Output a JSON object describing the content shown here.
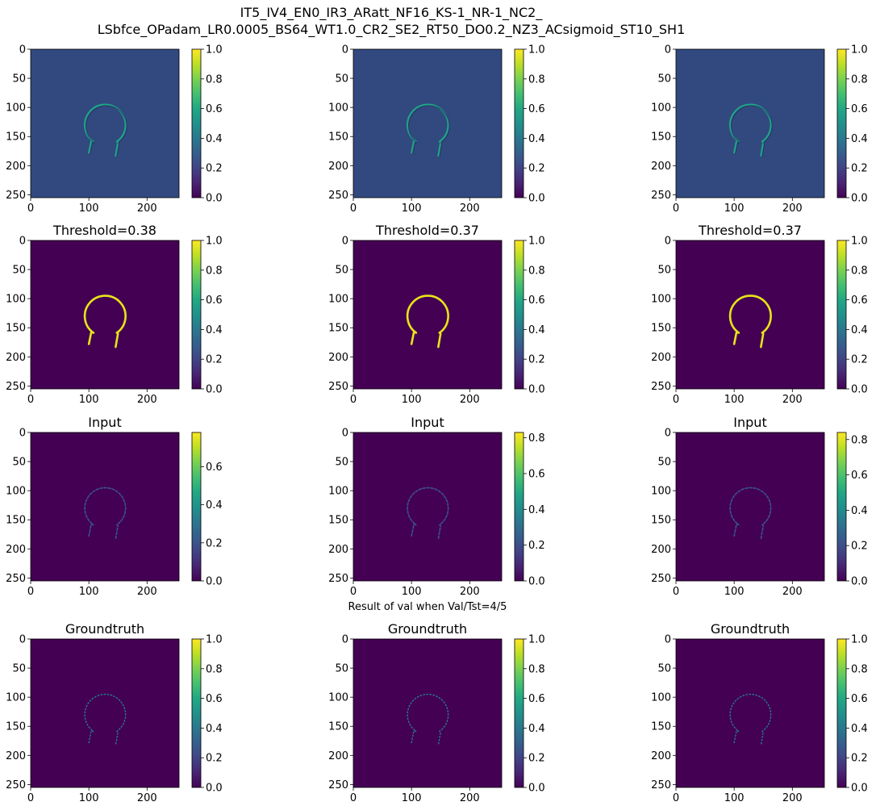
{
  "suptitle_line1": "IT5_IV4_EN0_IR3_ARatt_NF16_KS-1_NR-1_NC2_",
  "suptitle_line2": "LSbfce_OPadam_LR0.0005_BS64_WT1.0_CR2_SE2_RT50_DO0.2_NZ3_ACsigmoid_ST10_SH1",
  "mid_caption": "Result of val when Val/Tst=4/5",
  "colormap": "viridis",
  "colors": {
    "viridis_low": "#440154",
    "viridis_mid": "#21918c",
    "viridis_high": "#fde725"
  },
  "chart_data": [
    {
      "type": "heatmap",
      "row": 0,
      "col": 0,
      "title": "",
      "variant": "prob",
      "xticks": [
        0,
        100,
        200
      ],
      "yticks": [
        0,
        50,
        100,
        150,
        200,
        250
      ],
      "xlim": [
        0,
        255
      ],
      "ylim": [
        255,
        0
      ],
      "colorbar": {
        "min": 0,
        "max": 1.0,
        "ticks": [
          "0.0",
          "0.2",
          "0.4",
          "0.6",
          "0.8",
          "1.0"
        ]
      }
    },
    {
      "type": "heatmap",
      "row": 0,
      "col": 1,
      "title": "",
      "variant": "prob",
      "xticks": [
        0,
        100,
        200
      ],
      "yticks": [
        0,
        50,
        100,
        150,
        200,
        250
      ],
      "xlim": [
        0,
        255
      ],
      "ylim": [
        255,
        0
      ],
      "colorbar": {
        "min": 0,
        "max": 1.0,
        "ticks": [
          "0.0",
          "0.2",
          "0.4",
          "0.6",
          "0.8",
          "1.0"
        ]
      }
    },
    {
      "type": "heatmap",
      "row": 0,
      "col": 2,
      "title": "",
      "variant": "prob",
      "xticks": [
        0,
        100,
        200
      ],
      "yticks": [
        0,
        50,
        100,
        150,
        200,
        250
      ],
      "xlim": [
        0,
        255
      ],
      "ylim": [
        255,
        0
      ],
      "colorbar": {
        "min": 0,
        "max": 1.0,
        "ticks": [
          "0.0",
          "0.2",
          "0.4",
          "0.6",
          "0.8",
          "1.0"
        ]
      }
    },
    {
      "type": "heatmap",
      "row": 1,
      "col": 0,
      "title": "Threshold=0.38",
      "variant": "thresh",
      "xticks": [
        0,
        100,
        200
      ],
      "yticks": [
        0,
        50,
        100,
        150,
        200,
        250
      ],
      "xlim": [
        0,
        255
      ],
      "ylim": [
        255,
        0
      ],
      "colorbar": {
        "min": 0,
        "max": 1.0,
        "ticks": [
          "0.0",
          "0.2",
          "0.4",
          "0.6",
          "0.8",
          "1.0"
        ]
      }
    },
    {
      "type": "heatmap",
      "row": 1,
      "col": 1,
      "title": "Threshold=0.37",
      "variant": "thresh",
      "xticks": [
        0,
        100,
        200
      ],
      "yticks": [
        0,
        50,
        100,
        150,
        200,
        250
      ],
      "xlim": [
        0,
        255
      ],
      "ylim": [
        255,
        0
      ],
      "colorbar": {
        "min": 0,
        "max": 1.0,
        "ticks": [
          "0.0",
          "0.2",
          "0.4",
          "0.6",
          "0.8",
          "1.0"
        ]
      }
    },
    {
      "type": "heatmap",
      "row": 1,
      "col": 2,
      "title": "Threshold=0.37",
      "variant": "thresh",
      "xticks": [
        0,
        100,
        200
      ],
      "yticks": [
        0,
        50,
        100,
        150,
        200,
        250
      ],
      "xlim": [
        0,
        255
      ],
      "ylim": [
        255,
        0
      ],
      "colorbar": {
        "min": 0,
        "max": 1.0,
        "ticks": [
          "0.0",
          "0.2",
          "0.4",
          "0.6",
          "0.8",
          "1.0"
        ]
      }
    },
    {
      "type": "heatmap",
      "row": 2,
      "col": 0,
      "title": "Input",
      "variant": "input",
      "xticks": [
        0,
        100,
        200
      ],
      "yticks": [
        0,
        50,
        100,
        150,
        200,
        250
      ],
      "xlim": [
        0,
        255
      ],
      "ylim": [
        255,
        0
      ],
      "colorbar": {
        "min": 0,
        "max": 0.78,
        "ticks": [
          "0.0",
          "0.2",
          "0.4",
          "0.6"
        ]
      }
    },
    {
      "type": "heatmap",
      "row": 2,
      "col": 1,
      "title": "Input",
      "variant": "input",
      "xticks": [
        0,
        100,
        200
      ],
      "yticks": [
        0,
        50,
        100,
        150,
        200,
        250
      ],
      "xlim": [
        0,
        255
      ],
      "ylim": [
        255,
        0
      ],
      "colorbar": {
        "min": 0,
        "max": 0.83,
        "ticks": [
          "0.0",
          "0.2",
          "0.4",
          "0.6",
          "0.8"
        ]
      }
    },
    {
      "type": "heatmap",
      "row": 2,
      "col": 2,
      "title": "Input",
      "variant": "input",
      "xticks": [
        0,
        100,
        200
      ],
      "yticks": [
        0,
        50,
        100,
        150,
        200,
        250
      ],
      "xlim": [
        0,
        255
      ],
      "ylim": [
        255,
        0
      ],
      "colorbar": {
        "min": 0,
        "max": 0.84,
        "ticks": [
          "0.0",
          "0.2",
          "0.4",
          "0.6",
          "0.8"
        ]
      }
    },
    {
      "type": "heatmap",
      "row": 3,
      "col": 0,
      "title": "Groundtruth",
      "variant": "gt",
      "xticks": [
        0,
        100,
        200
      ],
      "yticks": [
        0,
        50,
        100,
        150,
        200,
        250
      ],
      "xlim": [
        0,
        255
      ],
      "ylim": [
        255,
        0
      ],
      "colorbar": {
        "min": 0,
        "max": 1.0,
        "ticks": [
          "0.0",
          "0.2",
          "0.4",
          "0.6",
          "0.8",
          "1.0"
        ]
      }
    },
    {
      "type": "heatmap",
      "row": 3,
      "col": 1,
      "title": "Groundtruth",
      "variant": "gt",
      "xticks": [
        0,
        100,
        200
      ],
      "yticks": [
        0,
        50,
        100,
        150,
        200,
        250
      ],
      "xlim": [
        0,
        255
      ],
      "ylim": [
        255,
        0
      ],
      "colorbar": {
        "min": 0,
        "max": 1.0,
        "ticks": [
          "0.0",
          "0.2",
          "0.4",
          "0.6",
          "0.8",
          "1.0"
        ]
      }
    },
    {
      "type": "heatmap",
      "row": 3,
      "col": 2,
      "title": "Groundtruth",
      "variant": "gt",
      "xticks": [
        0,
        100,
        200
      ],
      "yticks": [
        0,
        50,
        100,
        150,
        200,
        250
      ],
      "xlim": [
        0,
        255
      ],
      "ylim": [
        255,
        0
      ],
      "colorbar": {
        "min": 0,
        "max": 1.0,
        "ticks": [
          "0.0",
          "0.2",
          "0.4",
          "0.6",
          "0.8",
          "1.0"
        ]
      }
    }
  ]
}
